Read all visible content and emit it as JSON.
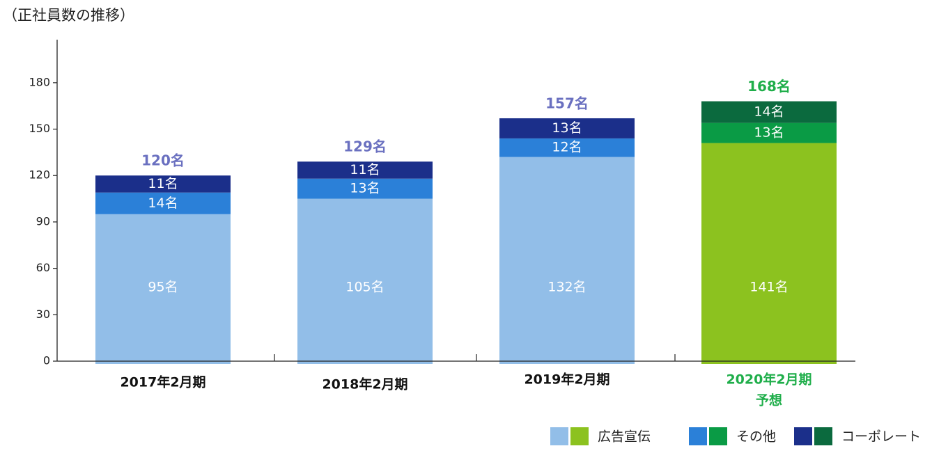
{
  "title": "（正社員数の推移）",
  "chart_data": {
    "type": "bar",
    "stacked": true,
    "title": "（正社員数の推移）",
    "categories": [
      {
        "lines": [
          "2017年2月期"
        ],
        "forecast": false
      },
      {
        "lines": [
          "2018年2月期"
        ],
        "forecast": false
      },
      {
        "lines": [
          "2019年2月期"
        ],
        "forecast": false
      },
      {
        "lines": [
          "2020年2月期",
          "予想"
        ],
        "forecast": true
      }
    ],
    "series": [
      {
        "name": "広告宣伝",
        "values": [
          95,
          105,
          132,
          141
        ],
        "labels": [
          "95名",
          "105名",
          "132名",
          "141名"
        ],
        "color": "#92bee8",
        "forecast_color": "#8cc21f"
      },
      {
        "name": "その他",
        "values": [
          14,
          13,
          12,
          13
        ],
        "labels": [
          "14名",
          "13名",
          "12名",
          "13名"
        ],
        "color": "#2b80d8",
        "forecast_color": "#0a9b45"
      },
      {
        "name": "コーポレート",
        "values": [
          11,
          11,
          13,
          14
        ],
        "labels": [
          "11名",
          "11名",
          "13名",
          "14名"
        ],
        "color": "#1b2f8a",
        "forecast_color": "#0b6a3e"
      }
    ],
    "totals": [
      "120名",
      "129名",
      "157名",
      "168名"
    ],
    "total_color": "#6a70c0",
    "forecast_total_color": "#1fae4a",
    "yticks": [
      0,
      30,
      60,
      90,
      120,
      150,
      180
    ],
    "ylim": [
      0,
      200
    ],
    "legend": "bottom-right",
    "grid": false
  }
}
